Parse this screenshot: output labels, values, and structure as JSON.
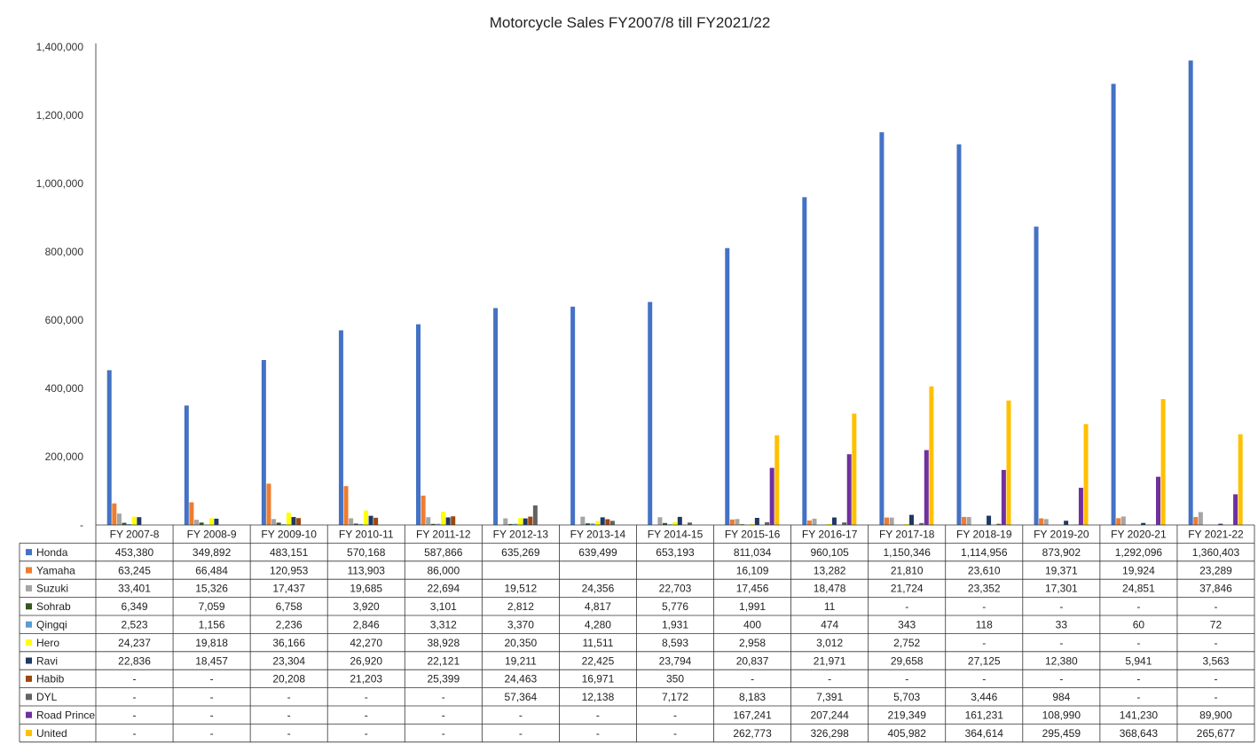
{
  "chart_data": {
    "type": "bar",
    "title": "Motorcycle Sales FY2007/8 till FY2021/22",
    "xlabel": "",
    "ylabel": "",
    "ylim": [
      0,
      1400000
    ],
    "yticks": [
      "-",
      "200,000",
      "400,000",
      "600,000",
      "800,000",
      "1,000,000",
      "1,200,000",
      "1,400,000"
    ],
    "grid": false,
    "legend": "data-table-left",
    "categories": [
      "FY 2007-8",
      "FY 2008-9",
      "FY 2009-10",
      "FY 2010-11",
      "FY 2011-12",
      "FY 2012-13",
      "FY 2013-14",
      "FY 2014-15",
      "FY 2015-16",
      "FY 2016-17",
      "FY 2017-18",
      "FY 2018-19",
      "FY 2019-20",
      "FY 2020-21",
      "FY 2021-22"
    ],
    "series": [
      {
        "name": "Honda",
        "color": "#4472C4",
        "values": [
          453380,
          349892,
          483151,
          570168,
          587866,
          635269,
          639499,
          653193,
          811034,
          960105,
          1150346,
          1114956,
          873902,
          1292096,
          1360403
        ],
        "labels": [
          "453,380",
          "349,892",
          "483,151",
          "570,168",
          "587,866",
          "635,269",
          "639,499",
          "653,193",
          "811,034",
          "960,105",
          "1,150,346",
          "1,114,956",
          "873,902",
          "1,292,096",
          "1,360,403"
        ]
      },
      {
        "name": "Yamaha",
        "color": "#ED7D31",
        "values": [
          63245,
          66484,
          120953,
          113903,
          86000,
          null,
          null,
          null,
          16109,
          13282,
          21810,
          23610,
          19371,
          19924,
          23289
        ],
        "labels": [
          "63,245",
          "66,484",
          "120,953",
          "113,903",
          "86,000",
          "",
          "",
          "",
          "16,109",
          "13,282",
          "21,810",
          "23,610",
          "19,371",
          "19,924",
          "23,289"
        ]
      },
      {
        "name": "Suzuki",
        "color": "#A5A5A5",
        "values": [
          33401,
          15326,
          17437,
          19685,
          22694,
          19512,
          24356,
          22703,
          17456,
          18478,
          21724,
          23352,
          17301,
          24851,
          37846
        ],
        "labels": [
          "33,401",
          "15,326",
          "17,437",
          "19,685",
          "22,694",
          "19,512",
          "24,356",
          "22,703",
          "17,456",
          "18,478",
          "21,724",
          "23,352",
          "17,301",
          "24,851",
          "37,846"
        ]
      },
      {
        "name": "Sohrab",
        "color": "#375623",
        "values": [
          6349,
          7059,
          6758,
          3920,
          3101,
          2812,
          4817,
          5776,
          1991,
          11,
          null,
          null,
          null,
          null,
          null
        ],
        "labels": [
          "6,349",
          "7,059",
          "6,758",
          "3,920",
          "3,101",
          "2,812",
          "4,817",
          "5,776",
          "1,991",
          "11",
          "-",
          "-",
          "-",
          "-",
          "-"
        ]
      },
      {
        "name": "Qingqi",
        "color": "#5B9BD5",
        "values": [
          2523,
          1156,
          2236,
          2846,
          3312,
          3370,
          4280,
          1931,
          400,
          474,
          343,
          118,
          33,
          60,
          72
        ],
        "labels": [
          "2,523",
          "1,156",
          "2,236",
          "2,846",
          "3,312",
          "3,370",
          "4,280",
          "1,931",
          "400",
          "474",
          "343",
          "118",
          "33",
          "60",
          "72"
        ]
      },
      {
        "name": "Hero",
        "color": "#FFFF00",
        "values": [
          24237,
          19818,
          36166,
          42270,
          38928,
          20350,
          11511,
          8593,
          2958,
          3012,
          2752,
          null,
          null,
          null,
          null
        ],
        "labels": [
          "24,237",
          "19,818",
          "36,166",
          "42,270",
          "38,928",
          "20,350",
          "11,511",
          "8,593",
          "2,958",
          "3,012",
          "2,752",
          "-",
          "-",
          "-",
          "-"
        ]
      },
      {
        "name": "Ravi",
        "color": "#1F3864",
        "values": [
          22836,
          18457,
          23304,
          26920,
          22121,
          19211,
          22425,
          23794,
          20837,
          21971,
          29658,
          27125,
          12380,
          5941,
          3563
        ],
        "labels": [
          "22,836",
          "18,457",
          "23,304",
          "26,920",
          "22,121",
          "19,211",
          "22,425",
          "23,794",
          "20,837",
          "21,971",
          "29,658",
          "27,125",
          "12,380",
          "5,941",
          "3,563"
        ]
      },
      {
        "name": "Habib",
        "color": "#9E480E",
        "values": [
          null,
          null,
          20208,
          21203,
          25399,
          24463,
          16971,
          350,
          null,
          null,
          null,
          null,
          null,
          null,
          null
        ],
        "labels": [
          "-",
          "-",
          "20,208",
          "21,203",
          "25,399",
          "24,463",
          "16,971",
          "350",
          "-",
          "-",
          "-",
          "-",
          "-",
          "-",
          "-"
        ]
      },
      {
        "name": "DYL",
        "color": "#636363",
        "values": [
          null,
          null,
          null,
          null,
          null,
          57364,
          12138,
          7172,
          8183,
          7391,
          5703,
          3446,
          984,
          null,
          null
        ],
        "labels": [
          "-",
          "-",
          "-",
          "-",
          "-",
          "57,364",
          "12,138",
          "7,172",
          "8,183",
          "7,391",
          "5,703",
          "3,446",
          "984",
          "-",
          "-"
        ]
      },
      {
        "name": "Road Prince",
        "color": "#7030A0",
        "values": [
          null,
          null,
          null,
          null,
          null,
          null,
          null,
          null,
          167241,
          207244,
          219349,
          161231,
          108990,
          141230,
          89900
        ],
        "labels": [
          "-",
          "-",
          "-",
          "-",
          "-",
          "-",
          "-",
          "-",
          "167,241",
          "207,244",
          "219,349",
          "161,231",
          "108,990",
          "141,230",
          "89,900"
        ]
      },
      {
        "name": "United",
        "color": "#FFC000",
        "values": [
          null,
          null,
          null,
          null,
          null,
          null,
          null,
          null,
          262773,
          326298,
          405982,
          364614,
          295459,
          368643,
          265677
        ],
        "labels": [
          "-",
          "-",
          "-",
          "-",
          "-",
          "-",
          "-",
          "-",
          "262,773",
          "326,298",
          "405,982",
          "364,614",
          "295,459",
          "368,643",
          "265,677"
        ]
      }
    ]
  }
}
